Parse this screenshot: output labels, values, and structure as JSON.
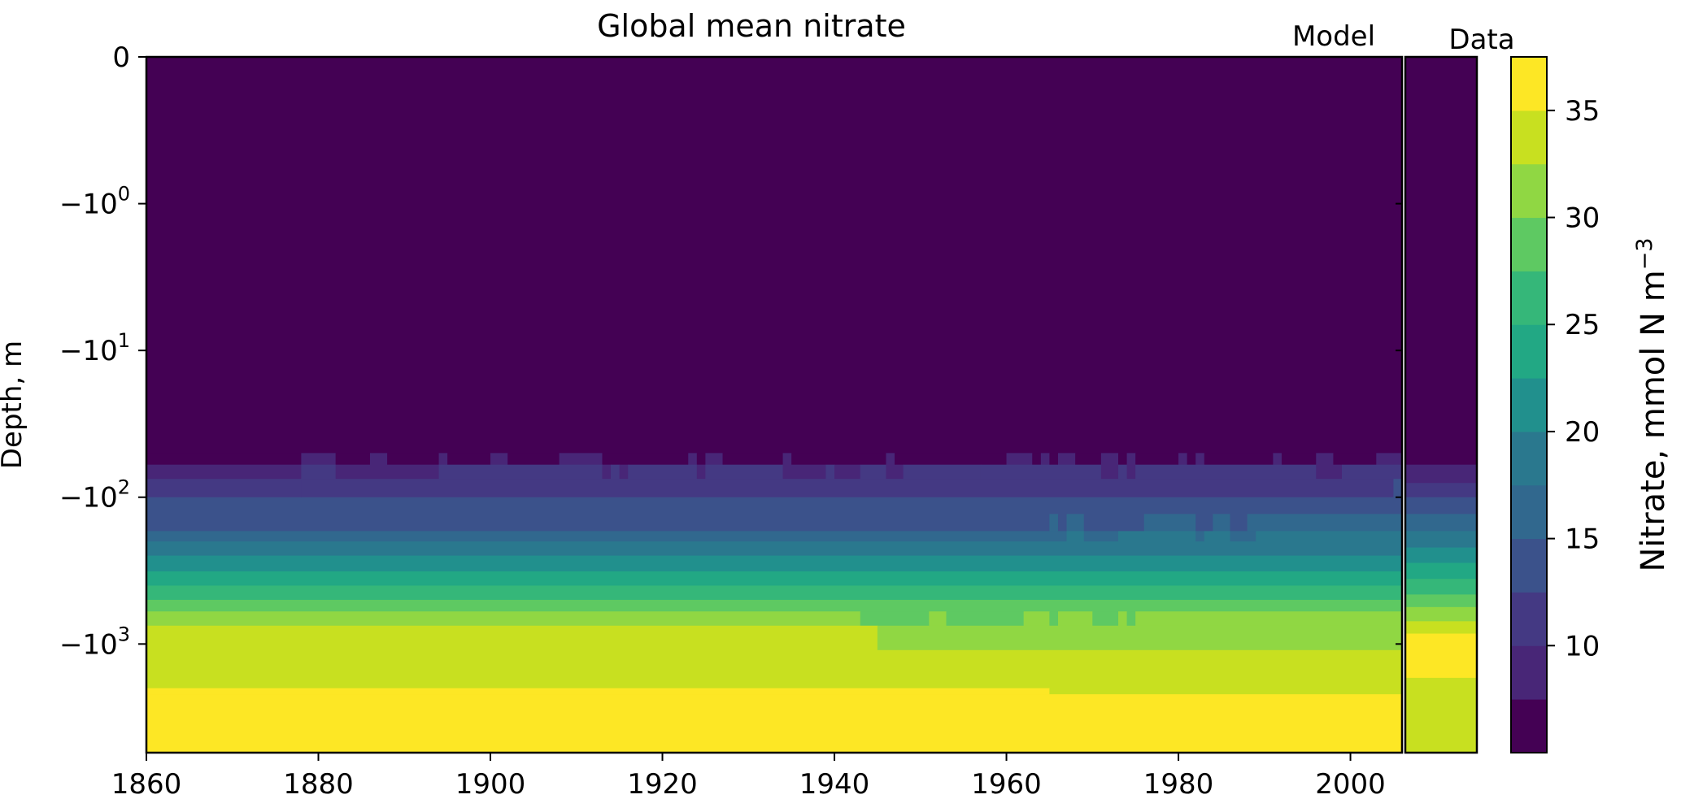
{
  "chart_data": {
    "type": "heatmap",
    "title": "Global mean nitrate",
    "panel_labels": {
      "model": "Model",
      "data": "Data"
    },
    "ylabel": "Depth, m",
    "colorbar_label": "Nitrate, mmol N m",
    "colorbar_label_superscript": "−3",
    "colormap": "viridis",
    "xlim": [
      1860,
      2006
    ],
    "data_panel_xlim": [
      2006,
      2015
    ],
    "x_ticks": [
      1860,
      1880,
      1900,
      1920,
      1940,
      1960,
      1980,
      2000
    ],
    "x_tick_labels": [
      "1860",
      "1880",
      "1900",
      "1920",
      "1940",
      "1960",
      "1980",
      "2000"
    ],
    "y_scale": "symlog",
    "ylim": [
      -5500,
      0
    ],
    "y_ticks": [
      {
        "value": 0,
        "label": "0",
        "sup": ""
      },
      {
        "value": -1,
        "label": "−10",
        "sup": "0"
      },
      {
        "value": -10,
        "label": "−10",
        "sup": "1"
      },
      {
        "value": -100,
        "label": "−10",
        "sup": "2"
      },
      {
        "value": -1000,
        "label": "−10",
        "sup": "3"
      }
    ],
    "color_levels": [
      5,
      7.5,
      10,
      12.5,
      15,
      17.5,
      20,
      22.5,
      25,
      27.5,
      30,
      32.5,
      35,
      37.5
    ],
    "colorbar_ticks": [
      10,
      15,
      20,
      25,
      30,
      35
    ],
    "colors": [
      "#440154",
      "#482677",
      "#443983",
      "#3b528b",
      "#31688e",
      "#2a788e",
      "#21908d",
      "#22a884",
      "#35b779",
      "#5ec962",
      "#90d743",
      "#c8e020",
      "#fde725"
    ],
    "model_layers": [
      {
        "top": 0,
        "bottom": -50,
        "segments": [
          {
            "x0": 1860,
            "x1": 2006,
            "bin": 0
          }
        ]
      },
      {
        "top": -50,
        "bottom": -60,
        "segments": [
          {
            "x0": 1860,
            "x1": 1878,
            "bin": 0
          },
          {
            "x0": 1878,
            "x1": 1882,
            "bin": 1
          },
          {
            "x0": 1882,
            "x1": 1886,
            "bin": 0
          },
          {
            "x0": 1886,
            "x1": 1888,
            "bin": 1
          },
          {
            "x0": 1888,
            "x1": 1894,
            "bin": 0
          },
          {
            "x0": 1894,
            "x1": 1895,
            "bin": 1
          },
          {
            "x0": 1895,
            "x1": 1900,
            "bin": 0
          },
          {
            "x0": 1900,
            "x1": 1902,
            "bin": 1
          },
          {
            "x0": 1902,
            "x1": 1908,
            "bin": 0
          },
          {
            "x0": 1908,
            "x1": 1913,
            "bin": 1
          },
          {
            "x0": 1913,
            "x1": 1923,
            "bin": 0
          },
          {
            "x0": 1923,
            "x1": 1924,
            "bin": 1
          },
          {
            "x0": 1924,
            "x1": 1925,
            "bin": 0
          },
          {
            "x0": 1925,
            "x1": 1927,
            "bin": 1
          },
          {
            "x0": 1927,
            "x1": 1934,
            "bin": 0
          },
          {
            "x0": 1934,
            "x1": 1935,
            "bin": 1
          },
          {
            "x0": 1935,
            "x1": 1946,
            "bin": 0
          },
          {
            "x0": 1946,
            "x1": 1947,
            "bin": 1
          },
          {
            "x0": 1947,
            "x1": 1960,
            "bin": 0
          },
          {
            "x0": 1960,
            "x1": 1963,
            "bin": 1
          },
          {
            "x0": 1963,
            "x1": 1964,
            "bin": 0
          },
          {
            "x0": 1964,
            "x1": 1965,
            "bin": 1
          },
          {
            "x0": 1965,
            "x1": 1966,
            "bin": 0
          },
          {
            "x0": 1966,
            "x1": 1968,
            "bin": 1
          },
          {
            "x0": 1968,
            "x1": 1971,
            "bin": 0
          },
          {
            "x0": 1971,
            "x1": 1973,
            "bin": 1
          },
          {
            "x0": 1973,
            "x1": 1974,
            "bin": 0
          },
          {
            "x0": 1974,
            "x1": 1975,
            "bin": 1
          },
          {
            "x0": 1975,
            "x1": 1980,
            "bin": 0
          },
          {
            "x0": 1980,
            "x1": 1981,
            "bin": 1
          },
          {
            "x0": 1981,
            "x1": 1982,
            "bin": 0
          },
          {
            "x0": 1982,
            "x1": 1983,
            "bin": 1
          },
          {
            "x0": 1983,
            "x1": 1991,
            "bin": 0
          },
          {
            "x0": 1991,
            "x1": 1992,
            "bin": 1
          },
          {
            "x0": 1992,
            "x1": 1996,
            "bin": 0
          },
          {
            "x0": 1996,
            "x1": 1998,
            "bin": 1
          },
          {
            "x0": 1998,
            "x1": 2003,
            "bin": 0
          },
          {
            "x0": 2003,
            "x1": 2006,
            "bin": 1
          }
        ]
      },
      {
        "top": -60,
        "bottom": -75,
        "segments": [
          {
            "x0": 1860,
            "x1": 1878,
            "bin": 1
          },
          {
            "x0": 1878,
            "x1": 1882,
            "bin": 2
          },
          {
            "x0": 1882,
            "x1": 1894,
            "bin": 1
          },
          {
            "x0": 1894,
            "x1": 1913,
            "bin": 2
          },
          {
            "x0": 1913,
            "x1": 1914,
            "bin": 1
          },
          {
            "x0": 1914,
            "x1": 1915,
            "bin": 2
          },
          {
            "x0": 1915,
            "x1": 1916,
            "bin": 1
          },
          {
            "x0": 1916,
            "x1": 1924,
            "bin": 2
          },
          {
            "x0": 1924,
            "x1": 1925,
            "bin": 1
          },
          {
            "x0": 1925,
            "x1": 1934,
            "bin": 2
          },
          {
            "x0": 1934,
            "x1": 1939,
            "bin": 1
          },
          {
            "x0": 1939,
            "x1": 1940,
            "bin": 2
          },
          {
            "x0": 1940,
            "x1": 1943,
            "bin": 1
          },
          {
            "x0": 1943,
            "x1": 1946,
            "bin": 2
          },
          {
            "x0": 1946,
            "x1": 1948,
            "bin": 1
          },
          {
            "x0": 1948,
            "x1": 1957,
            "bin": 2
          },
          {
            "x0": 1957,
            "x1": 1971,
            "bin": 2
          },
          {
            "x0": 1971,
            "x1": 1973,
            "bin": 1
          },
          {
            "x0": 1973,
            "x1": 1974,
            "bin": 2
          },
          {
            "x0": 1974,
            "x1": 1975,
            "bin": 1
          },
          {
            "x0": 1975,
            "x1": 1996,
            "bin": 2
          },
          {
            "x0": 1996,
            "x1": 1999,
            "bin": 1
          },
          {
            "x0": 1999,
            "x1": 2006,
            "bin": 2
          }
        ]
      },
      {
        "top": -75,
        "bottom": -100,
        "segments": [
          {
            "x0": 1860,
            "x1": 1878,
            "bin": 2
          },
          {
            "x0": 1878,
            "x1": 2005,
            "bin": 2
          },
          {
            "x0": 2005,
            "x1": 2006,
            "bin": 3
          }
        ]
      },
      {
        "top": -100,
        "bottom": -130,
        "segments": [
          {
            "x0": 1860,
            "x1": 2006,
            "bin": 3
          }
        ]
      },
      {
        "top": -130,
        "bottom": -170,
        "segments": [
          {
            "x0": 1860,
            "x1": 1965,
            "bin": 3
          },
          {
            "x0": 1965,
            "x1": 1966,
            "bin": 4
          },
          {
            "x0": 1966,
            "x1": 1967,
            "bin": 3
          },
          {
            "x0": 1967,
            "x1": 1969,
            "bin": 4
          },
          {
            "x0": 1969,
            "x1": 1976,
            "bin": 3
          },
          {
            "x0": 1976,
            "x1": 1982,
            "bin": 4
          },
          {
            "x0": 1982,
            "x1": 1984,
            "bin": 3
          },
          {
            "x0": 1984,
            "x1": 1986,
            "bin": 4
          },
          {
            "x0": 1986,
            "x1": 1988,
            "bin": 3
          },
          {
            "x0": 1988,
            "x1": 2006,
            "bin": 4
          }
        ]
      },
      {
        "top": -170,
        "bottom": -200,
        "segments": [
          {
            "x0": 1860,
            "x1": 1967,
            "bin": 4
          },
          {
            "x0": 1967,
            "x1": 1969,
            "bin": 5
          },
          {
            "x0": 1969,
            "x1": 1973,
            "bin": 4
          },
          {
            "x0": 1973,
            "x1": 1982,
            "bin": 5
          },
          {
            "x0": 1982,
            "x1": 1983,
            "bin": 4
          },
          {
            "x0": 1983,
            "x1": 1986,
            "bin": 5
          },
          {
            "x0": 1986,
            "x1": 1989,
            "bin": 4
          },
          {
            "x0": 1989,
            "x1": 2006,
            "bin": 5
          }
        ]
      },
      {
        "top": -200,
        "bottom": -250,
        "segments": [
          {
            "x0": 1860,
            "x1": 2006,
            "bin": 5
          }
        ]
      },
      {
        "top": -250,
        "bottom": -320,
        "segments": [
          {
            "x0": 1860,
            "x1": 2006,
            "bin": 6
          }
        ]
      },
      {
        "top": -320,
        "bottom": -400,
        "segments": [
          {
            "x0": 1860,
            "x1": 2006,
            "bin": 7
          }
        ]
      },
      {
        "top": -400,
        "bottom": -500,
        "segments": [
          {
            "x0": 1860,
            "x1": 2006,
            "bin": 8
          }
        ]
      },
      {
        "top": -500,
        "bottom": -600,
        "segments": [
          {
            "x0": 1860,
            "x1": 2006,
            "bin": 9
          }
        ]
      },
      {
        "top": -600,
        "bottom": -750,
        "segments": [
          {
            "x0": 1860,
            "x1": 1943,
            "bin": 10
          },
          {
            "x0": 1943,
            "x1": 1951,
            "bin": 9
          },
          {
            "x0": 1951,
            "x1": 1953,
            "bin": 10
          },
          {
            "x0": 1953,
            "x1": 1962,
            "bin": 9
          },
          {
            "x0": 1962,
            "x1": 1965,
            "bin": 10
          },
          {
            "x0": 1965,
            "x1": 1966,
            "bin": 9
          },
          {
            "x0": 1966,
            "x1": 1970,
            "bin": 10
          },
          {
            "x0": 1970,
            "x1": 1973,
            "bin": 9
          },
          {
            "x0": 1973,
            "x1": 1974,
            "bin": 10
          },
          {
            "x0": 1974,
            "x1": 1975,
            "bin": 9
          },
          {
            "x0": 1975,
            "x1": 2006,
            "bin": 10
          }
        ]
      },
      {
        "top": -750,
        "bottom": -1100,
        "segments": [
          {
            "x0": 1860,
            "x1": 1945,
            "bin": 11
          },
          {
            "x0": 1945,
            "x1": 2006,
            "bin": 10
          }
        ]
      },
      {
        "top": -1100,
        "bottom": -2000,
        "segments": [
          {
            "x0": 1860,
            "x1": 2006,
            "bin": 11
          }
        ]
      },
      {
        "top": -2000,
        "bottom": -2200,
        "segments": [
          {
            "x0": 1860,
            "x1": 1965,
            "bin": 12
          },
          {
            "x0": 1965,
            "x1": 2006,
            "bin": 11
          }
        ]
      },
      {
        "top": -2200,
        "bottom": -5500,
        "segments": [
          {
            "x0": 1860,
            "x1": 2006,
            "bin": 12
          }
        ]
      }
    ],
    "data_layers": [
      {
        "top": 0,
        "bottom": -60,
        "bin": 0
      },
      {
        "top": -60,
        "bottom": -80,
        "bin": 1
      },
      {
        "top": -80,
        "bottom": -100,
        "bin": 2
      },
      {
        "top": -100,
        "bottom": -130,
        "bin": 3
      },
      {
        "top": -130,
        "bottom": -170,
        "bin": 4
      },
      {
        "top": -170,
        "bottom": -220,
        "bin": 5
      },
      {
        "top": -220,
        "bottom": -280,
        "bin": 6
      },
      {
        "top": -280,
        "bottom": -360,
        "bin": 7
      },
      {
        "top": -360,
        "bottom": -460,
        "bin": 8
      },
      {
        "top": -460,
        "bottom": -560,
        "bin": 9
      },
      {
        "top": -560,
        "bottom": -700,
        "bin": 10
      },
      {
        "top": -700,
        "bottom": -850,
        "bin": 11
      },
      {
        "top": -850,
        "bottom": -1700,
        "bin": 12
      },
      {
        "top": -1700,
        "bottom": -5500,
        "bin": 11
      }
    ]
  }
}
